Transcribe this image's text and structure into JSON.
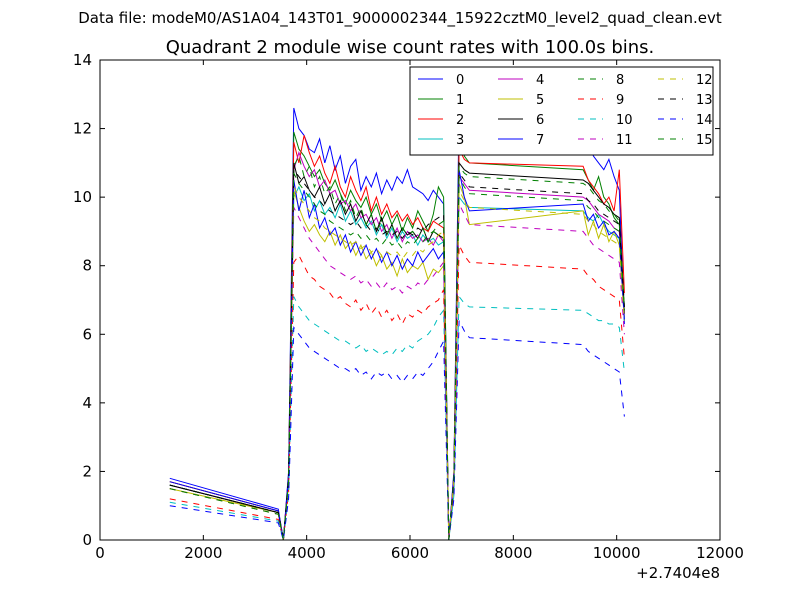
{
  "suptitle": "Data file: modeM0/AS1A04_143T01_9000002344_15922cztM0_level2_quad_clean.evt",
  "chart_data": {
    "type": "line",
    "title": "Quadrant 2 module wise count rates with 100.0s bins.",
    "xlabel": "",
    "ylabel": "",
    "x_offset_label": "+2.7404e8",
    "xlim": [
      0,
      12000
    ],
    "ylim": [
      0,
      14
    ],
    "xticks": [
      "0",
      "2000",
      "4000",
      "6000",
      "8000",
      "10000",
      "12000"
    ],
    "yticks": [
      "0",
      "2",
      "4",
      "6",
      "8",
      "10",
      "12",
      "14"
    ],
    "grid": false,
    "legend": {
      "placement": "top-right",
      "columns": 4
    },
    "segments": [
      {
        "x_start": 1350,
        "n": 1
      },
      {
        "x_start": 3450,
        "n": 38
      },
      {
        "x_start": 9350,
        "n": 13
      }
    ],
    "series": [
      {
        "name": "0",
        "color": "#0000ff",
        "dash": "solid",
        "values": [
          1.8,
          0.9,
          0.0,
          2.0,
          12.6,
          12.0,
          11.8,
          11.4,
          11.3,
          11.7,
          11.0,
          11.5,
          10.8,
          11.2,
          10.4,
          10.9,
          11.1,
          10.2,
          10.6,
          10.3,
          10.7,
          10.1,
          10.5,
          10.2,
          10.6,
          10.4,
          10.8,
          10.3,
          10.2,
          10.1,
          9.9,
          10.2,
          10.0,
          9.8,
          0.0,
          2.0,
          12.6,
          11.8,
          12.0,
          11.4,
          11.6,
          11.2,
          11.0,
          10.8,
          11.1,
          10.6,
          10.2,
          6.3
        ]
      },
      {
        "name": "1",
        "color": "#008000",
        "dash": "solid",
        "values": [
          1.7,
          0.85,
          0.0,
          1.9,
          11.9,
          11.4,
          11.2,
          10.9,
          10.6,
          10.8,
          10.4,
          10.2,
          10.5,
          10.1,
          9.8,
          10.2,
          9.9,
          9.7,
          10.0,
          9.5,
          9.8,
          9.3,
          9.6,
          9.2,
          9.5,
          9.0,
          9.4,
          9.1,
          9.6,
          9.3,
          9.0,
          9.5,
          10.3,
          10.0,
          0.0,
          1.9,
          11.8,
          11.2,
          11.0,
          10.8,
          10.5,
          10.2,
          10.6,
          10.0,
          9.8,
          9.4,
          9.2,
          6.8
        ]
      },
      {
        "name": "2",
        "color": "#ff0000",
        "dash": "solid",
        "values": [
          1.7,
          0.85,
          0.0,
          1.9,
          11.6,
          11.0,
          11.8,
          11.3,
          10.9,
          11.2,
          10.7,
          10.4,
          10.9,
          10.3,
          10.0,
          10.6,
          10.2,
          9.9,
          10.3,
          9.6,
          10.0,
          9.5,
          9.8,
          9.4,
          9.6,
          9.3,
          9.5,
          9.2,
          9.4,
          9.1,
          9.0,
          9.3,
          9.2,
          9.1,
          0.0,
          1.9,
          11.4,
          11.1,
          11.0,
          10.9,
          10.5,
          10.3,
          10.1,
          9.8,
          10.0,
          9.6,
          10.8,
          7.2
        ]
      },
      {
        "name": "3",
        "color": "#00bfbf",
        "dash": "solid",
        "values": [
          1.6,
          0.8,
          0.0,
          1.8,
          10.0,
          10.3,
          9.9,
          10.1,
          9.6,
          9.9,
          9.5,
          9.7,
          9.4,
          9.8,
          9.3,
          9.6,
          9.2,
          9.4,
          9.1,
          9.3,
          8.9,
          9.2,
          8.8,
          9.1,
          8.7,
          9.0,
          8.8,
          8.9,
          8.6,
          8.9,
          8.7,
          8.8,
          8.6,
          8.7,
          0.0,
          1.8,
          10.0,
          9.8,
          9.7,
          9.6,
          9.4,
          9.3,
          9.5,
          9.2,
          9.0,
          8.9,
          8.8,
          6.4
        ]
      },
      {
        "name": "4",
        "color": "#bf00bf",
        "dash": "solid",
        "values": [
          1.6,
          0.8,
          0.0,
          1.8,
          10.8,
          11.3,
          10.9,
          10.6,
          10.8,
          10.3,
          10.5,
          10.1,
          10.2,
          9.8,
          9.9,
          9.6,
          9.8,
          9.4,
          9.5,
          9.2,
          9.4,
          9.0,
          9.2,
          8.8,
          9.1,
          8.7,
          9.0,
          8.8,
          8.9,
          8.7,
          8.8,
          8.6,
          8.9,
          8.7,
          0.0,
          1.8,
          10.6,
          10.4,
          10.2,
          10.0,
          9.9,
          9.7,
          9.5,
          9.4,
          9.3,
          9.1,
          9.0,
          6.6
        ]
      },
      {
        "name": "5",
        "color": "#bfbf00",
        "dash": "solid",
        "values": [
          1.5,
          0.8,
          0.0,
          1.7,
          10.2,
          9.7,
          9.3,
          9.0,
          9.2,
          8.9,
          8.7,
          9.0,
          8.6,
          8.9,
          8.5,
          8.7,
          8.3,
          8.6,
          8.2,
          8.4,
          8.0,
          8.3,
          7.9,
          8.1,
          7.7,
          8.2,
          7.8,
          8.0,
          7.9,
          8.1,
          7.6,
          7.9,
          7.8,
          8.0,
          0.0,
          1.7,
          10.4,
          10.0,
          9.2,
          9.6,
          8.9,
          9.3,
          8.8,
          9.2,
          8.7,
          9.0,
          8.6,
          6.5
        ]
      },
      {
        "name": "6",
        "color": "#000000",
        "dash": "solid",
        "values": [
          1.6,
          0.8,
          0.0,
          1.8,
          11.0,
          10.4,
          10.6,
          10.2,
          10.0,
          10.3,
          9.8,
          10.1,
          9.6,
          9.9,
          9.5,
          9.8,
          9.3,
          9.6,
          9.2,
          9.5,
          9.0,
          9.4,
          8.9,
          9.2,
          8.8,
          9.1,
          8.9,
          9.0,
          8.8,
          9.1,
          8.7,
          9.0,
          8.9,
          8.8,
          0.0,
          1.8,
          11.0,
          10.8,
          10.7,
          10.5,
          10.4,
          10.2,
          10.0,
          9.8,
          9.7,
          9.5,
          9.4,
          6.6
        ]
      },
      {
        "name": "7",
        "color": "#0000ff",
        "dash": "solid",
        "values": [
          1.7,
          0.85,
          0.0,
          1.9,
          10.5,
          9.6,
          10.2,
          9.4,
          9.8,
          9.1,
          9.4,
          8.9,
          9.1,
          8.6,
          8.9,
          8.4,
          8.7,
          8.3,
          8.6,
          8.2,
          8.5,
          8.1,
          8.4,
          8.0,
          8.3,
          7.9,
          8.2,
          8.0,
          8.4,
          8.1,
          8.3,
          8.5,
          8.2,
          8.4,
          0.0,
          1.9,
          10.8,
          10.0,
          9.6,
          9.8,
          9.3,
          9.5,
          9.1,
          9.3,
          8.9,
          9.0,
          8.8,
          6.4
        ]
      },
      {
        "name": "8",
        "color": "#008000",
        "dash": "dash",
        "values": [
          1.6,
          0.8,
          0.0,
          1.8,
          10.9,
          11.2,
          10.6,
          10.9,
          10.3,
          10.6,
          10.1,
          10.3,
          9.8,
          10.1,
          9.6,
          9.9,
          9.4,
          9.7,
          9.2,
          9.5,
          9.0,
          9.3,
          8.9,
          9.2,
          8.8,
          9.1,
          8.9,
          9.0,
          8.8,
          9.1,
          8.7,
          9.0,
          8.9,
          8.8,
          0.0,
          1.8,
          10.9,
          10.7,
          10.6,
          10.4,
          10.3,
          10.1,
          9.9,
          9.8,
          9.6,
          9.5,
          9.3,
          6.7
        ]
      },
      {
        "name": "9",
        "color": "#ff0000",
        "dash": "dash",
        "values": [
          1.2,
          0.6,
          0.0,
          1.4,
          8.1,
          8.3,
          8.0,
          7.7,
          7.6,
          7.4,
          7.3,
          7.2,
          7.0,
          7.1,
          6.9,
          6.8,
          7.0,
          6.7,
          6.9,
          6.6,
          6.8,
          6.5,
          6.7,
          6.4,
          6.6,
          6.3,
          6.6,
          6.5,
          6.7,
          6.6,
          6.8,
          6.9,
          7.0,
          7.3,
          0.0,
          1.4,
          8.6,
          8.3,
          8.1,
          7.9,
          7.7,
          7.6,
          7.4,
          7.3,
          7.2,
          7.1,
          7.0,
          5.3
        ]
      },
      {
        "name": "10",
        "color": "#00bfbf",
        "dash": "dash",
        "values": [
          1.1,
          0.55,
          0.0,
          1.3,
          7.1,
          6.8,
          6.6,
          6.4,
          6.3,
          6.2,
          6.1,
          6.0,
          5.9,
          5.8,
          5.8,
          5.7,
          5.6,
          5.7,
          5.5,
          5.6,
          5.5,
          5.4,
          5.5,
          5.4,
          5.6,
          5.5,
          5.7,
          5.6,
          5.8,
          5.9,
          6.0,
          6.2,
          6.5,
          6.7,
          0.0,
          1.3,
          7.1,
          6.9,
          6.8,
          6.7,
          6.6,
          6.5,
          6.4,
          6.4,
          6.3,
          6.3,
          6.2,
          4.9
        ]
      },
      {
        "name": "11",
        "color": "#bf00bf",
        "dash": "dash",
        "values": [
          1.5,
          0.75,
          0.0,
          1.7,
          9.7,
          9.4,
          9.1,
          8.8,
          8.6,
          8.4,
          8.2,
          8.0,
          7.9,
          7.8,
          7.7,
          7.6,
          7.7,
          7.5,
          7.6,
          7.4,
          7.5,
          7.3,
          7.5,
          7.3,
          7.4,
          7.2,
          7.4,
          7.3,
          7.5,
          7.4,
          7.6,
          7.7,
          7.9,
          8.1,
          0.0,
          1.7,
          9.8,
          9.5,
          9.2,
          9.0,
          8.8,
          8.6,
          8.5,
          8.4,
          8.3,
          8.2,
          8.1,
          6.0
        ]
      },
      {
        "name": "12",
        "color": "#bfbf00",
        "dash": "dash",
        "values": [
          1.5,
          0.75,
          0.0,
          1.7,
          10.3,
          10.0,
          9.8,
          9.6,
          9.4,
          9.3,
          9.1,
          9.0,
          8.9,
          8.8,
          8.7,
          8.6,
          8.7,
          8.5,
          8.6,
          8.4,
          8.5,
          8.3,
          8.4,
          8.3,
          8.4,
          8.2,
          8.4,
          8.3,
          8.5,
          8.4,
          8.6,
          8.7,
          8.9,
          9.0,
          0.0,
          1.7,
          10.2,
          9.9,
          9.7,
          9.5,
          9.3,
          9.2,
          9.0,
          8.9,
          8.8,
          8.7,
          8.6,
          6.4
        ]
      },
      {
        "name": "13",
        "color": "#000000",
        "dash": "dash",
        "values": [
          1.6,
          0.8,
          0.0,
          1.8,
          10.8,
          10.6,
          10.4,
          10.2,
          10.0,
          9.9,
          9.7,
          9.6,
          9.5,
          9.4,
          9.3,
          9.2,
          9.3,
          9.1,
          9.2,
          9.0,
          9.1,
          8.9,
          9.0,
          8.9,
          9.0,
          8.8,
          9.0,
          8.9,
          9.1,
          9.0,
          9.2,
          9.3,
          9.4,
          9.5,
          0.0,
          1.8,
          10.7,
          10.5,
          10.3,
          10.1,
          9.9,
          9.8,
          9.6,
          9.5,
          9.4,
          9.3,
          9.2,
          6.8
        ]
      },
      {
        "name": "14",
        "color": "#0000ff",
        "dash": "dash",
        "values": [
          1.0,
          0.5,
          0.0,
          1.2,
          6.2,
          6.0,
          5.8,
          5.6,
          5.5,
          5.4,
          5.3,
          5.2,
          5.1,
          5.0,
          5.0,
          4.9,
          5.0,
          4.8,
          4.9,
          4.7,
          4.9,
          4.8,
          4.9,
          4.7,
          4.8,
          4.6,
          4.8,
          4.7,
          4.9,
          4.8,
          5.0,
          5.2,
          5.5,
          5.8,
          0.0,
          1.2,
          6.4,
          6.1,
          5.9,
          5.7,
          5.5,
          5.4,
          5.3,
          5.2,
          5.1,
          5.0,
          4.9,
          3.6
        ]
      },
      {
        "name": "15",
        "color": "#008000",
        "dash": "dash",
        "values": [
          1.5,
          0.75,
          0.0,
          1.7,
          10.7,
          10.4,
          10.2,
          10.0,
          9.8,
          9.6,
          9.5,
          9.3,
          9.2,
          9.1,
          9.0,
          8.9,
          9.0,
          8.8,
          8.9,
          8.7,
          8.8,
          8.6,
          8.8,
          8.6,
          8.7,
          8.5,
          8.7,
          8.6,
          8.8,
          8.7,
          8.9,
          9.0,
          9.2,
          9.3,
          0.0,
          1.7,
          10.6,
          10.3,
          10.1,
          9.9,
          9.7,
          9.6,
          9.4,
          9.3,
          9.2,
          9.1,
          9.0,
          6.7
        ]
      }
    ]
  }
}
